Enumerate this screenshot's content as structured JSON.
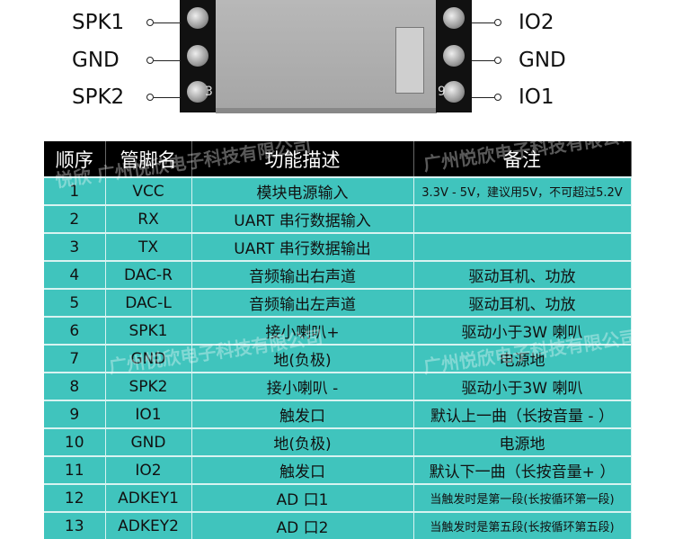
{
  "module": {
    "left_pins": [
      "SPK1",
      "GND",
      "SPK2"
    ],
    "right_pins": [
      "IO2",
      "GND",
      "IO1"
    ],
    "pcb_marks": [
      "3",
      "9"
    ]
  },
  "table": {
    "headers": [
      "顺序",
      "管脚名",
      "功能描述",
      "备注"
    ],
    "rows": [
      [
        "1",
        "VCC",
        "模块电源输入",
        "3.3V - 5V，建议用5V，不可超过5.2V"
      ],
      [
        "2",
        "RX",
        "UART 串行数据输入",
        ""
      ],
      [
        "3",
        "TX",
        "UART 串行数据输出",
        ""
      ],
      [
        "4",
        "DAC-R",
        "音频输出右声道",
        "驱动耳机、功放"
      ],
      [
        "5",
        "DAC-L",
        "音频输出左声道",
        "驱动耳机、功放"
      ],
      [
        "6",
        "SPK1",
        "接小喇叭+",
        "驱动小于3W 喇叭"
      ],
      [
        "7",
        "GND",
        "地(负极)",
        "电源地"
      ],
      [
        "8",
        "SPK2",
        "接小喇叭 -",
        "驱动小于3W 喇叭"
      ],
      [
        "9",
        "IO1",
        "触发口",
        "默认上一曲（长按音量 - ）"
      ],
      [
        "10",
        "GND",
        "地(负极)",
        "电源地"
      ],
      [
        "11",
        "IO2",
        "触发口",
        "默认下一曲（长按音量+ ）"
      ],
      [
        "12",
        "ADKEY1",
        "AD 口1",
        "当触发时是第一段(长按循环第一段)"
      ],
      [
        "13",
        "ADKEY2",
        "AD 口2",
        "当触发时是第五段(长按循环第五段)"
      ]
    ]
  },
  "watermark": "悦欣 广州悦欣电子科技有限公司",
  "colors": {
    "header_bg": "#000000",
    "row_bg": "#40c4bd"
  }
}
